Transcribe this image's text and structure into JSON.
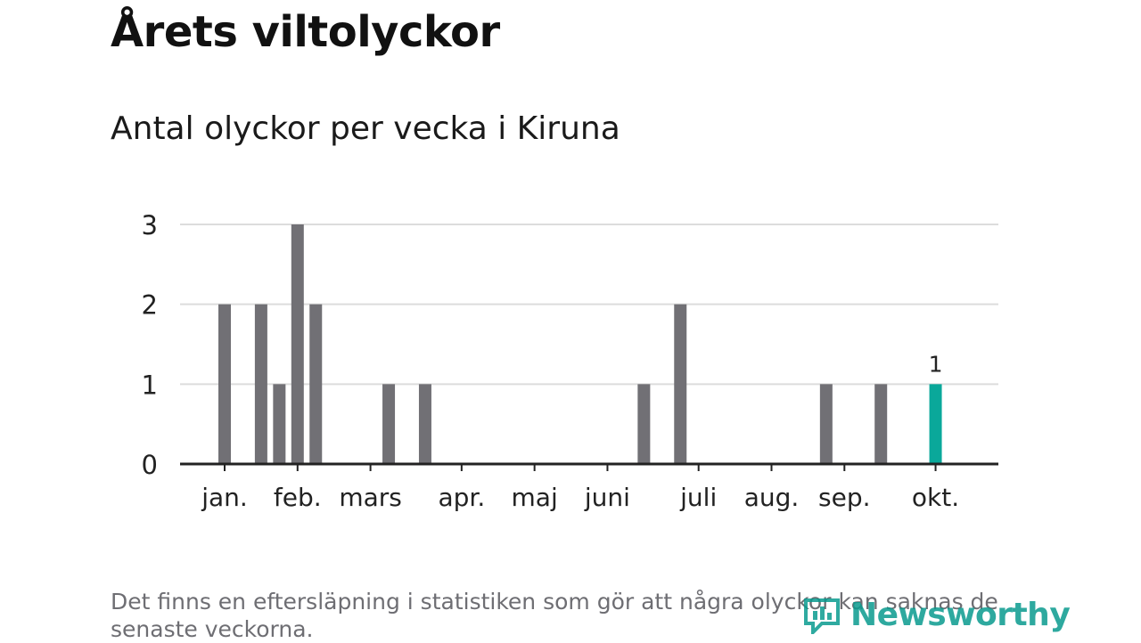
{
  "page": {
    "title": "Årets viltolyckor",
    "subtitle": "Antal olyckor per vecka i Kiruna",
    "footnote": "Det finns en eftersläpning i statistiken som gör att några olyckor kan saknas de senaste veckorna.",
    "logo_text": "Newsworthy"
  },
  "colors": {
    "bar": "#717075",
    "highlight": "#0aa89a",
    "grid": "#dcdcdc",
    "axis": "#222222",
    "text": "#222222"
  },
  "chart_data": {
    "type": "bar",
    "title": "Antal olyckor per vecka i Kiruna",
    "xlabel": "",
    "ylabel": "",
    "ylim": [
      0,
      3
    ],
    "yticks": [
      "0",
      "1",
      "2",
      "3"
    ],
    "grid": true,
    "x_tick_labels": [
      {
        "label": "jan.",
        "week": 1
      },
      {
        "label": "feb.",
        "week": 5
      },
      {
        "label": "mars",
        "week": 9
      },
      {
        "label": "apr.",
        "week": 14
      },
      {
        "label": "maj",
        "week": 18
      },
      {
        "label": "juni",
        "week": 22
      },
      {
        "label": "juli",
        "week": 27
      },
      {
        "label": "aug.",
        "week": 31
      },
      {
        "label": "sep.",
        "week": 35
      },
      {
        "label": "okt.",
        "week": 40
      }
    ],
    "weeks": [
      1,
      2,
      3,
      4,
      5,
      6,
      7,
      8,
      9,
      10,
      11,
      12,
      13,
      14,
      15,
      16,
      17,
      18,
      19,
      20,
      21,
      22,
      23,
      24,
      25,
      26,
      27,
      28,
      29,
      30,
      31,
      32,
      33,
      34,
      35,
      36,
      37,
      38,
      39,
      40
    ],
    "values": [
      2,
      0,
      2,
      1,
      3,
      2,
      0,
      0,
      0,
      1,
      0,
      1,
      0,
      0,
      0,
      0,
      0,
      0,
      0,
      0,
      0,
      0,
      0,
      1,
      0,
      2,
      0,
      0,
      0,
      0,
      0,
      0,
      0,
      1,
      0,
      0,
      1,
      0,
      0,
      1
    ],
    "highlight_index": 39,
    "highlight_label": "1"
  }
}
